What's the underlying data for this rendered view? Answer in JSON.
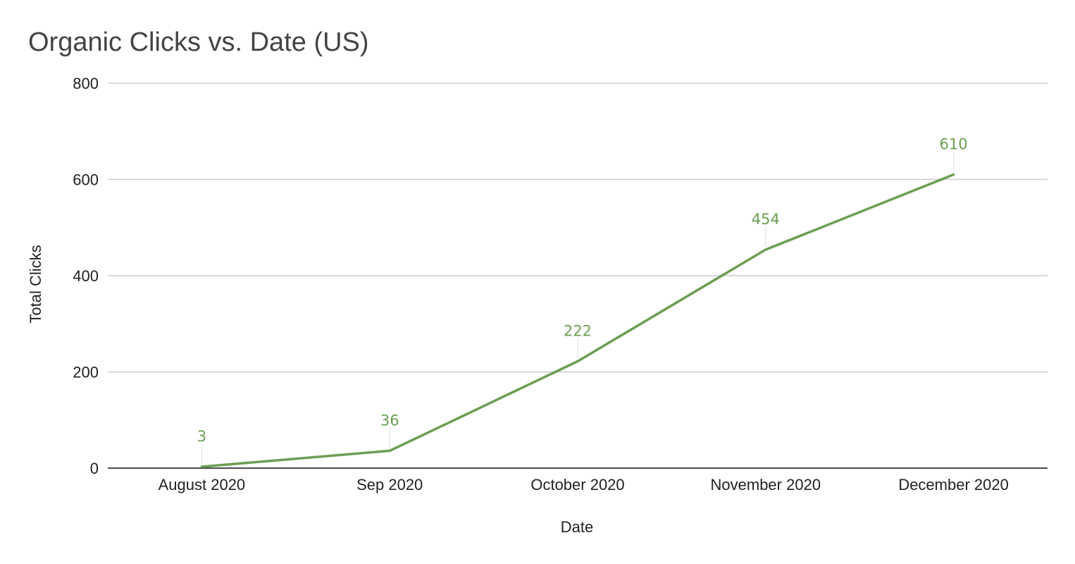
{
  "chart_data": {
    "type": "line",
    "title": "Organic Clicks vs. Date (US)",
    "xlabel": "Date",
    "ylabel": "Total Clicks",
    "categories": [
      "August 2020",
      "Sep 2020",
      "October 2020",
      "November 2020",
      "December 2020"
    ],
    "series": [
      {
        "values": [
          3,
          36,
          222,
          454,
          610
        ],
        "color": "#6a9f53"
      }
    ],
    "data_labels": [
      "3",
      "36",
      "222",
      "454",
      "610"
    ],
    "ylim": [
      0,
      800
    ],
    "y_ticks": [
      0,
      200,
      400,
      600,
      800
    ],
    "y_tick_labels": [
      "0",
      "200",
      "400",
      "600",
      "800"
    ],
    "grid": true,
    "legend": "none"
  },
  "colors": {
    "line": "#6a9f53",
    "gridline": "#cccccc",
    "baseline": "#333333",
    "title": "#444444",
    "text": "#222222"
  }
}
